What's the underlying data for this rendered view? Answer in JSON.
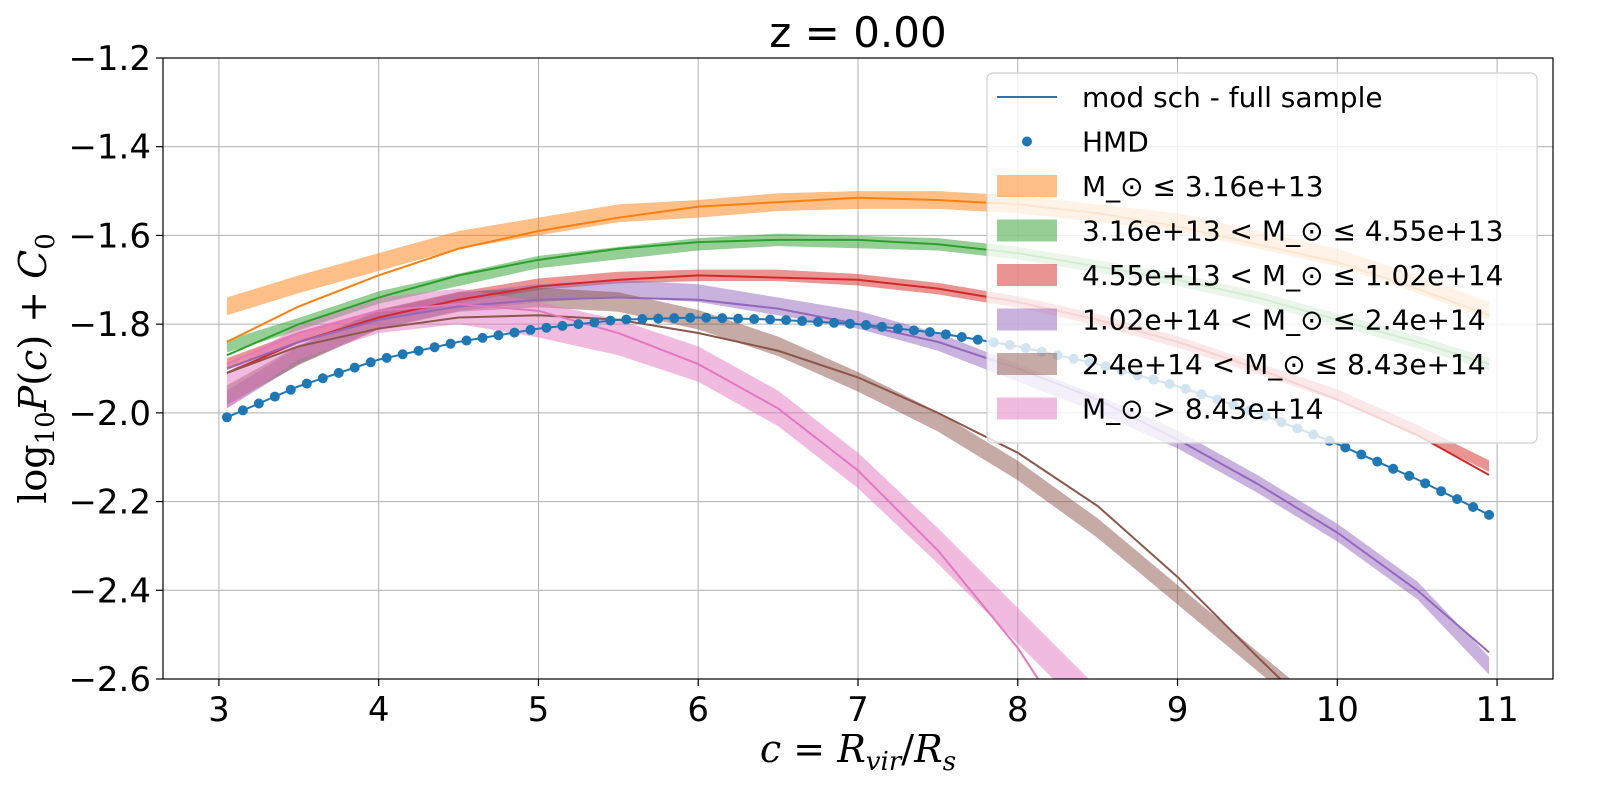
{
  "chart_data": {
    "type": "line",
    "title": "z = 0.00",
    "xlabel": "c = R_vir/R_s",
    "ylabel": "log₁₀P(c) + C₀",
    "xlim": [
      2.65,
      11.35
    ],
    "ylim": [
      -2.6,
      -1.2
    ],
    "xticks": [
      3,
      4,
      5,
      6,
      7,
      8,
      9,
      10,
      11
    ],
    "yticks": [
      -1.2,
      -1.4,
      -1.6,
      -1.8,
      -2.0,
      -2.2,
      -2.4,
      -2.6
    ],
    "xtick_labels": [
      "3",
      "4",
      "5",
      "6",
      "7",
      "8",
      "9",
      "10",
      "11"
    ],
    "ytick_labels": [
      "−1.2",
      "−1.4",
      "−1.6",
      "−1.8",
      "−2.0",
      "−2.2",
      "−2.4",
      "−2.6"
    ],
    "grid": true,
    "legend_position": "upper-right",
    "fit_line": {
      "name": "mod sch - full sample",
      "color": "#1f77b4",
      "x": [
        3.05,
        3.5,
        4.0,
        4.5,
        5.0,
        5.5,
        6.0,
        6.5,
        7.0,
        7.5,
        8.0,
        8.5,
        9.0,
        9.5,
        10.0,
        10.5,
        10.95
      ],
      "y": [
        -2.01,
        -1.94,
        -1.88,
        -1.84,
        -1.81,
        -1.79,
        -1.785,
        -1.79,
        -1.8,
        -1.82,
        -1.85,
        -1.89,
        -1.94,
        -2.0,
        -2.07,
        -2.15,
        -2.23
      ]
    },
    "points": {
      "name": "HMD",
      "color": "#1f77b4",
      "x": [
        3.05,
        3.5,
        4.0,
        4.5,
        5.0,
        5.5,
        6.0,
        6.5,
        7.0,
        7.5,
        8.0,
        8.5,
        9.0,
        9.5,
        10.0,
        10.5,
        10.95
      ],
      "y": [
        -2.01,
        -1.94,
        -1.88,
        -1.84,
        -1.81,
        -1.79,
        -1.785,
        -1.79,
        -1.8,
        -1.82,
        -1.85,
        -1.89,
        -1.94,
        -2.0,
        -2.07,
        -2.15,
        -2.23
      ]
    },
    "series": [
      {
        "name": "M_⊙ ≤ 3.16e+13",
        "color": "#ff7f0e",
        "band_x": [
          3.05,
          3.5,
          4.0,
          4.5,
          5.0,
          5.5,
          6.0,
          6.5,
          7.0,
          7.5,
          8.0,
          8.5,
          9.0,
          9.5,
          10.0,
          10.5,
          10.95
        ],
        "band_y": [
          -1.76,
          -1.71,
          -1.66,
          -1.61,
          -1.58,
          -1.55,
          -1.54,
          -1.525,
          -1.52,
          -1.52,
          -1.53,
          -1.55,
          -1.57,
          -1.61,
          -1.65,
          -1.71,
          -1.77
        ],
        "band_halfwidth": 0.02,
        "fit_x": [
          3.05,
          3.5,
          4.0,
          4.5,
          5.0,
          5.5,
          6.0,
          6.5,
          7.0,
          7.5,
          8.0,
          8.5,
          9.0,
          9.5,
          10.0,
          10.5,
          10.95
        ],
        "fit_y": [
          -1.84,
          -1.76,
          -1.69,
          -1.63,
          -1.59,
          -1.56,
          -1.535,
          -1.525,
          -1.515,
          -1.52,
          -1.53,
          -1.55,
          -1.58,
          -1.62,
          -1.66,
          -1.72,
          -1.78
        ]
      },
      {
        "name": "3.16e+13 < M_⊙ ≤ 4.55e+13",
        "color": "#2ca02c",
        "band_x": [
          3.05,
          3.5,
          4.0,
          4.5,
          5.0,
          5.5,
          6.0,
          6.5,
          7.0,
          7.5,
          8.0,
          8.5,
          9.0,
          9.5,
          10.0,
          10.5,
          10.95
        ],
        "band_y": [
          -1.85,
          -1.8,
          -1.74,
          -1.7,
          -1.66,
          -1.64,
          -1.62,
          -1.61,
          -1.615,
          -1.62,
          -1.64,
          -1.67,
          -1.7,
          -1.74,
          -1.79,
          -1.84,
          -1.89
        ],
        "band_halfwidth": 0.014,
        "fit_x": [
          3.05,
          3.5,
          4.0,
          4.5,
          5.0,
          5.5,
          6.0,
          6.5,
          7.0,
          7.5,
          8.0,
          8.5,
          9.0,
          9.5,
          10.0,
          10.5,
          10.95
        ],
        "fit_y": [
          -1.87,
          -1.8,
          -1.74,
          -1.69,
          -1.655,
          -1.63,
          -1.615,
          -1.61,
          -1.61,
          -1.62,
          -1.64,
          -1.67,
          -1.7,
          -1.74,
          -1.79,
          -1.84,
          -1.89
        ]
      },
      {
        "name": "4.55e+13 < M_⊙ ≤ 1.02e+14",
        "color": "#d62728",
        "band_x": [
          3.05,
          3.5,
          4.0,
          4.5,
          5.0,
          5.5,
          6.0,
          6.5,
          7.0,
          7.5,
          8.0,
          8.5,
          9.0,
          9.5,
          10.0,
          10.5,
          10.95
        ],
        "band_y": [
          -1.89,
          -1.83,
          -1.78,
          -1.74,
          -1.71,
          -1.695,
          -1.69,
          -1.69,
          -1.7,
          -1.72,
          -1.75,
          -1.79,
          -1.84,
          -1.9,
          -1.96,
          -2.04,
          -2.12
        ],
        "band_halfwidth": 0.013,
        "fit_x": [
          3.05,
          3.5,
          4.0,
          4.5,
          5.0,
          5.5,
          6.0,
          6.5,
          7.0,
          7.5,
          8.0,
          8.5,
          9.0,
          9.5,
          10.0,
          10.5,
          10.95
        ],
        "fit_y": [
          -1.91,
          -1.84,
          -1.785,
          -1.745,
          -1.715,
          -1.7,
          -1.69,
          -1.695,
          -1.7,
          -1.72,
          -1.75,
          -1.79,
          -1.84,
          -1.9,
          -1.97,
          -2.05,
          -2.14
        ]
      },
      {
        "name": "1.02e+14 < M_⊙ ≤ 2.4e+14",
        "color": "#9467bd",
        "band_x": [
          3.05,
          3.5,
          4.0,
          4.5,
          5.0,
          5.5,
          6.0,
          6.5,
          7.0,
          7.5,
          8.0,
          8.5,
          9.0,
          9.5,
          10.0,
          10.5,
          10.95
        ],
        "band_y": [
          -1.97,
          -1.87,
          -1.79,
          -1.75,
          -1.73,
          -1.72,
          -1.73,
          -1.76,
          -1.79,
          -1.84,
          -1.91,
          -1.98,
          -2.06,
          -2.16,
          -2.27,
          -2.4,
          -2.57
        ],
        "band_halfwidth": 0.02,
        "fit_x": [
          3.05,
          3.5,
          4.0,
          4.5,
          5.0,
          5.5,
          6.0,
          6.5,
          7.0,
          7.5,
          8.0,
          8.5,
          9.0,
          9.5,
          10.0,
          10.5,
          10.95
        ],
        "fit_y": [
          -1.9,
          -1.84,
          -1.79,
          -1.76,
          -1.745,
          -1.74,
          -1.745,
          -1.765,
          -1.8,
          -1.84,
          -1.9,
          -1.97,
          -2.06,
          -2.16,
          -2.27,
          -2.4,
          -2.54
        ]
      },
      {
        "name": "2.4e+14 < M_⊙ ≤ 8.43e+14",
        "color": "#8c564b",
        "band_x": [
          3.05,
          3.5,
          4.0,
          4.5,
          5.0,
          5.5,
          6.0,
          6.5,
          7.0,
          7.5,
          8.0,
          8.5,
          9.0,
          9.5,
          9.9
        ],
        "band_y": [
          -1.96,
          -1.87,
          -1.79,
          -1.75,
          -1.74,
          -1.75,
          -1.79,
          -1.85,
          -1.93,
          -2.02,
          -2.13,
          -2.26,
          -2.41,
          -2.56,
          -2.68
        ],
        "band_halfwidth": 0.022,
        "fit_x": [
          3.05,
          3.5,
          4.0,
          4.5,
          5.0,
          5.5,
          6.0,
          6.5,
          7.0,
          7.5,
          8.0,
          8.5,
          9.0,
          9.5,
          9.9
        ],
        "fit_y": [
          -1.91,
          -1.85,
          -1.81,
          -1.785,
          -1.78,
          -1.79,
          -1.82,
          -1.86,
          -1.92,
          -2.0,
          -2.09,
          -2.21,
          -2.37,
          -2.55,
          -2.69
        ]
      },
      {
        "name": "M_⊙ > 8.43e+14",
        "color": "#e377c2",
        "band_x": [
          3.05,
          3.5,
          4.0,
          4.5,
          5.0,
          5.5,
          6.0,
          6.5,
          7.0,
          7.5,
          8.0,
          8.5
        ],
        "band_y": [
          -1.95,
          -1.84,
          -1.78,
          -1.76,
          -1.79,
          -1.83,
          -1.89,
          -1.99,
          -2.13,
          -2.3,
          -2.48,
          -2.66
        ],
        "band_halfwidth": 0.04,
        "fit_x": [
          3.05,
          3.5,
          4.0,
          4.5,
          5.0,
          5.5,
          6.0,
          6.5,
          7.0,
          7.5,
          8.0,
          8.2
        ],
        "fit_y": [
          -1.89,
          -1.82,
          -1.77,
          -1.755,
          -1.77,
          -1.82,
          -1.89,
          -1.99,
          -2.13,
          -2.31,
          -2.53,
          -2.64
        ]
      }
    ]
  }
}
